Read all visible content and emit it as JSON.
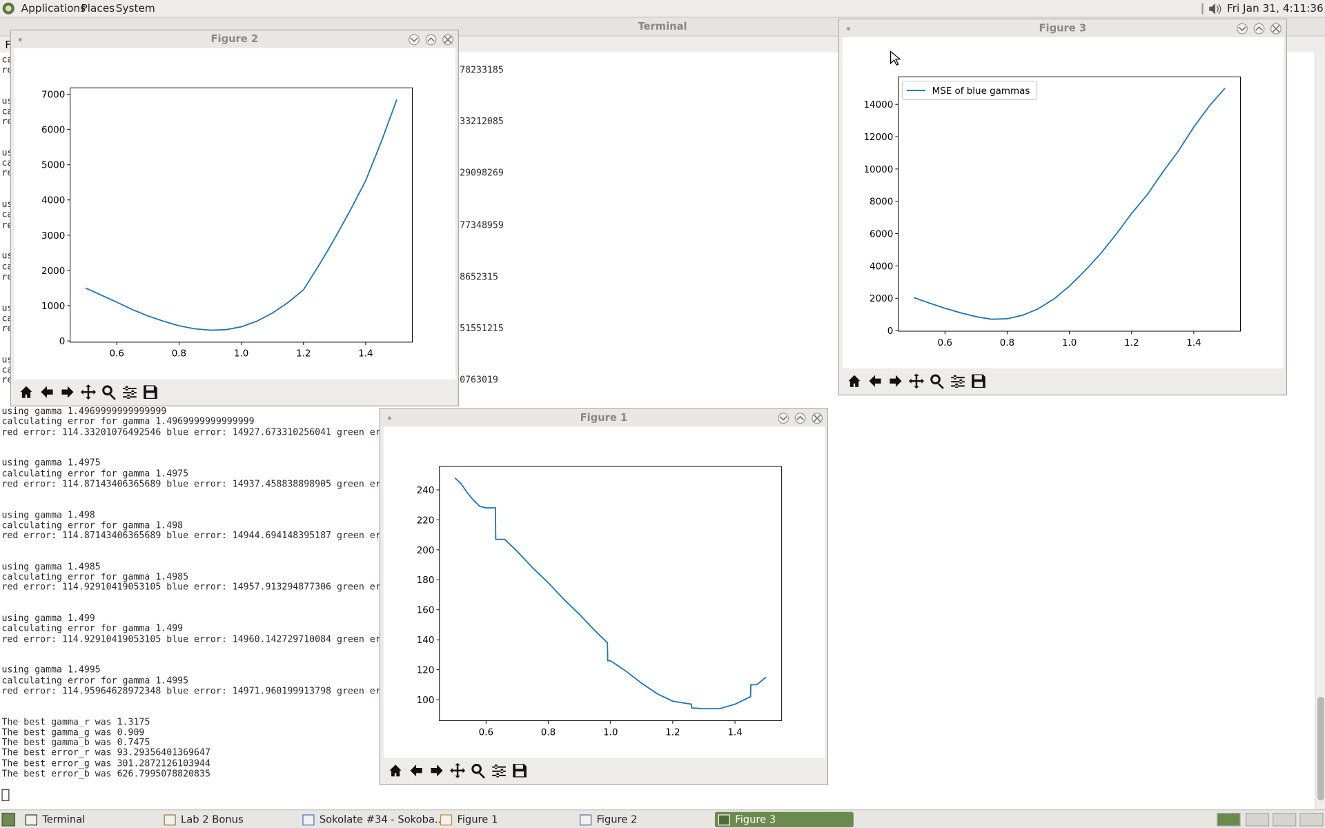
{
  "menubar": {
    "items": [
      "Applications",
      "Places",
      "System"
    ],
    "clock": "Fri Jan 31,  4:11:36 PM"
  },
  "terminal": {
    "title": "Terminal",
    "menu_fragment": "F",
    "upper_blocks": [
      {
        "left": [
          "ca",
          "re"
        ],
        "right": "78233185"
      },
      {
        "left": [
          "us",
          "ca",
          "re"
        ],
        "right": "33212085"
      },
      {
        "left": [
          "us",
          "ca",
          "re"
        ],
        "right": "29098269"
      },
      {
        "left": [
          "us",
          "ca",
          "re"
        ],
        "right": "77348959"
      },
      {
        "left": [
          "us",
          "ca",
          "re"
        ],
        "right": "8652315"
      },
      {
        "left": [
          "us",
          "ca",
          "re"
        ],
        "right": "51551215"
      },
      {
        "left": [
          "us",
          "ca",
          "re"
        ],
        "right": "0763019"
      }
    ],
    "blocks": [
      [
        "using gamma 1.4969999999999999",
        "calculating error for gamma 1.4969999999999999",
        "red error: 114.33201076492546 blue error: 14927.673310256041 green er"
      ],
      [
        "using gamma 1.4975",
        "calculating error for gamma 1.4975",
        "red error: 114.87143406365689 blue error: 14937.458838898905 green er"
      ],
      [
        "using gamma 1.498",
        "calculating error for gamma 1.498",
        "red error: 114.87143406365689 blue error: 14944.694148395187 green er"
      ],
      [
        "using gamma 1.4985",
        "calculating error for gamma 1.4985",
        "red error: 114.92910419053105 blue error: 14957.913294877306 green er"
      ],
      [
        "using gamma 1.499",
        "calculating error for gamma 1.499",
        "red error: 114.92910419053105 blue error: 14960.142729710084 green er"
      ],
      [
        "using gamma 1.4995",
        "calculating error for gamma 1.4995",
        "red error: 114.95964628972348 blue error: 14971.960199913798 green er"
      ],
      [
        "The best gamma_r was 1.3175",
        "The best gamma_g was 0.909",
        "The best gamma_b was 0.7475",
        "The best error_r was 93.29356401369647",
        "The best error_g was 301.2872126103944",
        "The best error_b was 626.7995078820835"
      ]
    ]
  },
  "window_titles": [
    "Figure 2",
    "Figure 3",
    "Figure 1"
  ],
  "chart_data": [
    {
      "type": "line",
      "x": [
        0.5,
        0.55,
        0.6,
        0.65,
        0.7,
        0.75,
        0.8,
        0.85,
        0.9,
        0.95,
        1.0,
        1.05,
        1.1,
        1.15,
        1.2,
        1.25,
        1.3,
        1.35,
        1.4,
        1.45,
        1.5
      ],
      "series": [
        {
          "color": "#1f77b4",
          "values": [
            1500,
            1300,
            1100,
            890,
            710,
            560,
            430,
            345,
            305,
            320,
            400,
            560,
            790,
            1090,
            1450,
            2150,
            2900,
            3700,
            4550,
            5650,
            6850
          ]
        }
      ],
      "xlim": [
        0.45,
        1.55
      ],
      "ylim": [
        -35,
        7180
      ],
      "xticks": [
        0.6,
        0.8,
        {
          "value": 1,
          "label": "1.0"
        },
        1.2,
        1.4
      ],
      "yticks": [
        0,
        1000,
        2000,
        3000,
        4000,
        5000,
        6000,
        7000
      ]
    },
    {
      "type": "line",
      "x": [
        0.5,
        0.55,
        0.6,
        0.65,
        0.7,
        0.75,
        0.8,
        0.85,
        0.9,
        0.95,
        1.0,
        1.05,
        1.1,
        1.15,
        1.2,
        1.25,
        1.3,
        1.35,
        1.4,
        1.45,
        1.5
      ],
      "series": [
        {
          "name": "MSE of blue gammas",
          "color": "#1f77b4",
          "values": [
            2040,
            1700,
            1380,
            1100,
            860,
            700,
            730,
            950,
            1350,
            1950,
            2750,
            3700,
            4750,
            5950,
            7250,
            8400,
            9800,
            11100,
            12600,
            13900,
            15000
          ]
        }
      ],
      "xlim": [
        0.45,
        1.55
      ],
      "ylim": [
        -40,
        15700
      ],
      "xticks": [
        0.6,
        0.8,
        {
          "value": 1,
          "label": "1.0"
        },
        1.2,
        1.4
      ],
      "yticks": [
        0,
        2000,
        4000,
        6000,
        8000,
        10000,
        12000,
        14000
      ],
      "legend": "upper left"
    },
    {
      "type": "line",
      "x": [
        0.5,
        0.52,
        0.54,
        0.56,
        0.58,
        0.6,
        0.63,
        0.631,
        0.66,
        0.7,
        0.75,
        0.8,
        0.85,
        0.9,
        0.95,
        0.99,
        0.991,
        1.0,
        1.05,
        1.1,
        1.15,
        1.2,
        1.26,
        1.261,
        1.3,
        1.35,
        1.4,
        1.45,
        1.451,
        1.47,
        1.5
      ],
      "series": [
        {
          "color": "#1f77b4",
          "values": [
            248,
            244,
            238,
            233,
            229,
            228,
            228,
            207,
            207,
            199,
            188,
            178,
            167,
            157,
            146,
            138,
            126,
            126,
            119,
            111,
            104,
            99,
            97,
            94.5,
            94,
            94,
            97,
            102,
            110,
            110,
            115
          ]
        }
      ],
      "xlim": [
        0.45,
        1.55
      ],
      "ylim": [
        86,
        255.7
      ],
      "xticks": [
        0.6,
        0.8,
        {
          "value": 1,
          "label": "1.0"
        },
        1.2,
        1.4
      ],
      "yticks": [
        100,
        120,
        140,
        160,
        180,
        200,
        220,
        240
      ]
    }
  ],
  "taskbar": [
    "Terminal",
    "Lab 2 Bonus",
    "Sokolate #34 - Sokoba...",
    "Figure 1",
    "Figure 2",
    "Figure 3"
  ]
}
